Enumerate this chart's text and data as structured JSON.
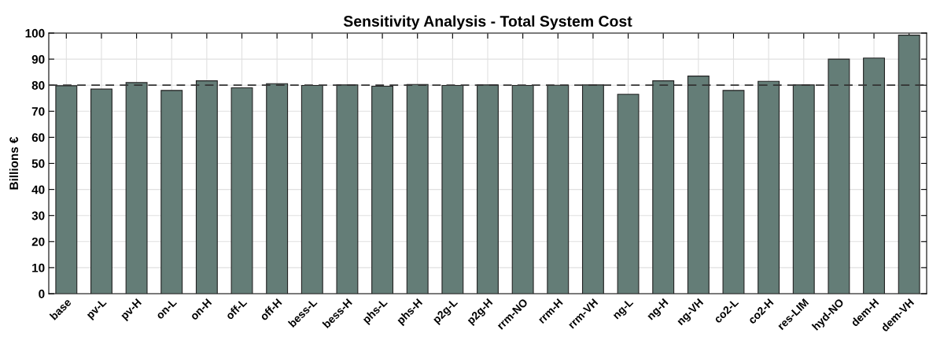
{
  "chart_data": {
    "type": "bar",
    "title": "Sensitivity Analysis - Total System Cost",
    "ylabel": "Billions €",
    "categories": [
      "base",
      "pv-L",
      "pv-H",
      "on-L",
      "on-H",
      "off-L",
      "off-H",
      "bess-L",
      "bess-H",
      "phs-L",
      "phs-H",
      "p2g-L",
      "p2g-H",
      "rrm-NO",
      "rrm-H",
      "rrm-VH",
      "ng-L",
      "ng-H",
      "ng-VH",
      "co2-L",
      "co2-H",
      "res-LIM",
      "hyd-NO",
      "dem-H",
      "dem-VH"
    ],
    "values": [
      79.8,
      78.5,
      81,
      78,
      81.7,
      79,
      80.6,
      79.9,
      80.1,
      79.6,
      80.3,
      79.9,
      80.1,
      79.9,
      80,
      80.1,
      76.5,
      81.7,
      83.5,
      78,
      81.5,
      80.1,
      90,
      90.4,
      99.2
    ],
    "color": "#647d77",
    "ylim": [
      0,
      100
    ],
    "yticks": [
      0,
      10,
      20,
      30,
      40,
      50,
      60,
      70,
      80,
      90,
      100
    ],
    "grid": true,
    "ref_lines": [
      {
        "axis": "y",
        "value": 80,
        "color": "#333333",
        "line_style": "dashed"
      }
    ]
  }
}
